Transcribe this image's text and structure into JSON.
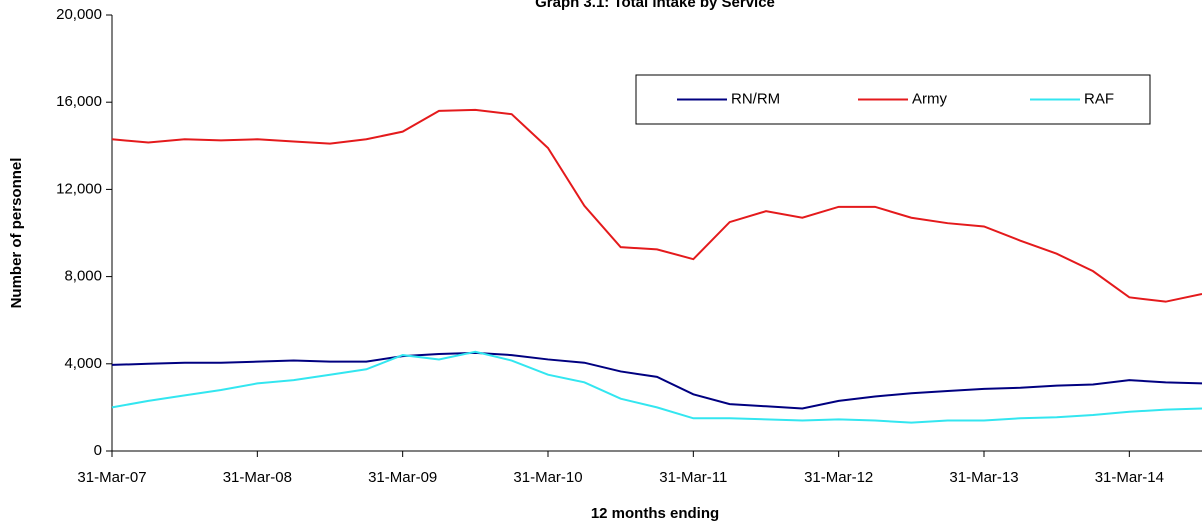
{
  "chart_data": {
    "type": "line",
    "title": "Graph 3.1: Total intake by Service",
    "x_label": "12 months ending",
    "y_label": "Number of personnel",
    "categories": [
      "31-Mar-07",
      null,
      null,
      null,
      "31-Mar-08",
      null,
      null,
      null,
      "31-Mar-09",
      null,
      null,
      null,
      "31-Mar-10",
      null,
      null,
      null,
      "31-Mar-11",
      null,
      null,
      null,
      "31-Mar-12",
      null,
      null,
      null,
      "31-Mar-13",
      null,
      null,
      null,
      "31-Mar-14",
      null,
      null
    ],
    "series": [
      {
        "name": "RN/RM",
        "color": "#000080",
        "values": [
          3950,
          4000,
          4050,
          4050,
          4100,
          4150,
          4100,
          4100,
          4350,
          4450,
          4500,
          4400,
          4200,
          4050,
          3650,
          3400,
          2600,
          2150,
          2050,
          1950,
          2300,
          2500,
          2650,
          2750,
          2850,
          2900,
          3000,
          3050,
          3250,
          3150,
          3100
        ]
      },
      {
        "name": "Army",
        "color": "#e41a1c",
        "values": [
          14300,
          14150,
          14300,
          14250,
          14300,
          14200,
          14100,
          14300,
          14650,
          15600,
          15650,
          15450,
          13900,
          11250,
          9350,
          9250,
          8800,
          10500,
          11000,
          10700,
          11200,
          11200,
          10700,
          10450,
          10300,
          9650,
          9050,
          8250,
          7050,
          6850,
          7200
        ]
      },
      {
        "name": "RAF",
        "color": "#33e6f0",
        "values": [
          2000,
          2300,
          2550,
          2800,
          3100,
          3250,
          3500,
          3750,
          4400,
          4200,
          4550,
          4150,
          3500,
          3150,
          2400,
          2000,
          1500,
          1500,
          1450,
          1400,
          1450,
          1400,
          1300,
          1400,
          1400,
          1500,
          1550,
          1650,
          1800,
          1900,
          1950
        ]
      }
    ],
    "ylim": [
      0,
      20000
    ],
    "yticks": [
      0,
      {
        "value": 4000,
        "label": "4,000"
      },
      {
        "value": 8000,
        "label": "8,000"
      },
      {
        "value": 12000,
        "label": "12,000"
      },
      {
        "value": 16000,
        "label": "16,000"
      },
      {
        "value": 20000,
        "label": "20,000"
      }
    ],
    "grid": false,
    "legend": "top-right"
  }
}
